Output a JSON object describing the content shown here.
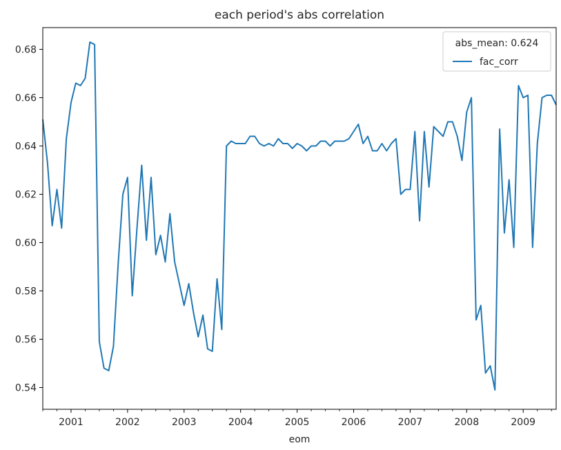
{
  "chart_data": {
    "type": "line",
    "title": "each period's abs correlation",
    "xlabel": "eom",
    "ylabel": "",
    "x_tick_labels": [
      "2001",
      "2002",
      "2003",
      "2004",
      "2005",
      "2006",
      "2007",
      "2008",
      "2009"
    ],
    "x_tick_years": [
      2001,
      2002,
      2003,
      2004,
      2005,
      2006,
      2007,
      2008,
      2009
    ],
    "xlim": [
      "2000-07",
      "2009-08"
    ],
    "ylim": [
      0.531,
      0.689
    ],
    "y_ticks": [
      0.54,
      0.56,
      0.58,
      0.6,
      0.62,
      0.64,
      0.66,
      0.68
    ],
    "y_tick_labels": [
      "0.54",
      "0.56",
      "0.58",
      "0.60",
      "0.62",
      "0.64",
      "0.66",
      "0.68"
    ],
    "grid": false,
    "legend": {
      "title": "abs_mean: 0.624",
      "placement": "top-right"
    },
    "series": [
      {
        "name": "fac_corr",
        "color": "#1f77b4",
        "x": [
          "2000-07",
          "2000-08",
          "2000-09",
          "2000-10",
          "2000-11",
          "2000-12",
          "2001-01",
          "2001-02",
          "2001-03",
          "2001-04",
          "2001-05",
          "2001-06",
          "2001-07",
          "2001-08",
          "2001-09",
          "2001-10",
          "2001-11",
          "2001-12",
          "2002-01",
          "2002-02",
          "2002-03",
          "2002-04",
          "2002-05",
          "2002-06",
          "2002-07",
          "2002-08",
          "2002-09",
          "2002-10",
          "2002-11",
          "2002-12",
          "2003-01",
          "2003-02",
          "2003-03",
          "2003-04",
          "2003-05",
          "2003-06",
          "2003-07",
          "2003-08",
          "2003-09",
          "2003-10",
          "2003-11",
          "2003-12",
          "2004-01",
          "2004-02",
          "2004-03",
          "2004-04",
          "2004-05",
          "2004-06",
          "2004-07",
          "2004-08",
          "2004-09",
          "2004-10",
          "2004-11",
          "2004-12",
          "2005-01",
          "2005-02",
          "2005-03",
          "2005-04",
          "2005-05",
          "2005-06",
          "2005-07",
          "2005-08",
          "2005-09",
          "2005-10",
          "2005-11",
          "2005-12",
          "2006-01",
          "2006-02",
          "2006-03",
          "2006-04",
          "2006-05",
          "2006-06",
          "2006-07",
          "2006-08",
          "2006-09",
          "2006-10",
          "2006-11",
          "2006-12",
          "2007-01",
          "2007-02",
          "2007-03",
          "2007-04",
          "2007-05",
          "2007-06",
          "2007-07",
          "2007-08",
          "2007-09",
          "2007-10",
          "2007-11",
          "2007-12",
          "2008-01",
          "2008-02",
          "2008-03",
          "2008-04",
          "2008-05",
          "2008-06",
          "2008-07",
          "2008-08",
          "2008-09",
          "2008-10",
          "2008-11",
          "2008-12",
          "2009-01",
          "2009-02",
          "2009-03",
          "2009-04",
          "2009-05",
          "2009-06",
          "2009-07",
          "2009-08"
        ],
        "values": [
          0.651,
          0.633,
          0.607,
          0.622,
          0.606,
          0.643,
          0.658,
          0.666,
          0.665,
          0.668,
          0.683,
          0.682,
          0.559,
          0.548,
          0.547,
          0.557,
          0.591,
          0.62,
          0.627,
          0.578,
          0.606,
          0.632,
          0.601,
          0.627,
          0.595,
          0.603,
          0.592,
          0.612,
          0.592,
          0.583,
          0.574,
          0.583,
          0.571,
          0.561,
          0.57,
          0.556,
          0.555,
          0.585,
          0.564,
          0.64,
          0.642,
          0.641,
          0.641,
          0.641,
          0.644,
          0.644,
          0.641,
          0.64,
          0.641,
          0.64,
          0.643,
          0.641,
          0.641,
          0.639,
          0.641,
          0.64,
          0.638,
          0.64,
          0.64,
          0.642,
          0.642,
          0.64,
          0.642,
          0.642,
          0.642,
          0.643,
          0.646,
          0.649,
          0.641,
          0.644,
          0.638,
          0.638,
          0.641,
          0.638,
          0.641,
          0.643,
          0.62,
          0.622,
          0.622,
          0.646,
          0.609,
          0.646,
          0.623,
          0.648,
          0.646,
          0.644,
          0.65,
          0.65,
          0.644,
          0.634,
          0.654,
          0.66,
          0.568,
          0.574,
          0.546,
          0.549,
          0.539,
          0.647,
          0.604,
          0.626,
          0.598,
          0.665,
          0.66,
          0.661,
          0.598,
          0.641,
          0.66,
          0.661,
          0.661,
          0.657
        ]
      }
    ]
  }
}
